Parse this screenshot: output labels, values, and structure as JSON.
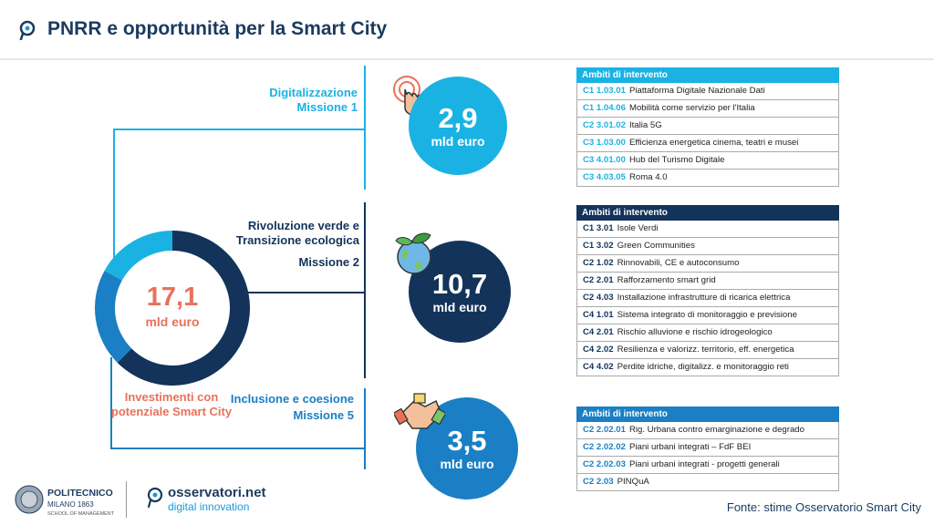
{
  "header": {
    "title": "PNRR e opportunità per la Smart City"
  },
  "total": {
    "value": "17,1",
    "unit": "mld euro",
    "label": "Investimenti con potenziale Smart City"
  },
  "missions": [
    {
      "name": "Digitalizzazione",
      "mission": "Missione 1",
      "value": "2,9",
      "unit": "mld euro",
      "color": "#1ab2e3",
      "icon": "touch-hand-icon",
      "table_header": "Ambiti di intervento",
      "rows": [
        {
          "code": "C1 1.03.01",
          "text": "Piattaforma Digitale Nazionale Dati"
        },
        {
          "code": "C1 1.04.06",
          "text": "Mobilità come servizio per l'Italia"
        },
        {
          "code": "C2 3.01.02",
          "text": "Italia 5G"
        },
        {
          "code": "C3 1.03.00",
          "text": "Efficienza energetica cinema, teatri e musei"
        },
        {
          "code": "C3 4.01.00",
          "text": "Hub del Turismo Digitale"
        },
        {
          "code": "C3 4.03.05",
          "text": "Roma 4.0"
        }
      ]
    },
    {
      "name": "Rivoluzione verde e Transizione ecologica",
      "mission": "Missione 2",
      "value": "10,7",
      "unit": "mld euro",
      "color": "#13335a",
      "icon": "globe-leaves-icon",
      "table_header": "Ambiti di intervento",
      "rows": [
        {
          "code": "C1 3.01",
          "text": "Isole Verdi"
        },
        {
          "code": "C1 3.02",
          "text": "Green Communities"
        },
        {
          "code": "C2 1.02",
          "text": "Rinnovabili, CE e autoconsumo"
        },
        {
          "code": "C2 2.01",
          "text": "Rafforzamento smart grid"
        },
        {
          "code": "C2 4.03",
          "text": "Installazione infrastrutture di ricarica elettrica"
        },
        {
          "code": "C4 1.01",
          "text": "Sistema integrato di monitoraggio e previsione"
        },
        {
          "code": "C4 2.01",
          "text": "Rischio alluvione e rischio idrogeologico"
        },
        {
          "code": "C4 2.02",
          "text": "Resilienza e valorizz. territorio, eff. energetica"
        },
        {
          "code": "C4 4.02",
          "text": "Perdite idriche, digitalizz. e monitoraggio reti"
        }
      ]
    },
    {
      "name": "Inclusione e coesione",
      "mission": "Missione 5",
      "value": "3,5",
      "unit": "mld euro",
      "color": "#1a7fc4",
      "icon": "joined-hands-icon",
      "table_header": "Ambiti di intervento",
      "rows": [
        {
          "code": "C2 2.02.01",
          "text": "Rig. Urbana contro emarginazione e degrado"
        },
        {
          "code": "C2 2.02.02",
          "text": "Piani urbani integrati – FdF BEI"
        },
        {
          "code": "C2 2.02.03",
          "text": "Piani urbani integrati - progetti generali"
        },
        {
          "code": "C2 2.03",
          "text": "PINQuA"
        }
      ]
    }
  ],
  "source": "Fonte: stime Osservatorio Smart City",
  "logos": {
    "polimi_name": "POLITECNICO",
    "polimi_sub": "MILANO 1863",
    "polimi_school": "SCHOOL OF MANAGEMENT",
    "osserv_name": "osservatori.net",
    "osserv_sub": "digital innovation"
  }
}
